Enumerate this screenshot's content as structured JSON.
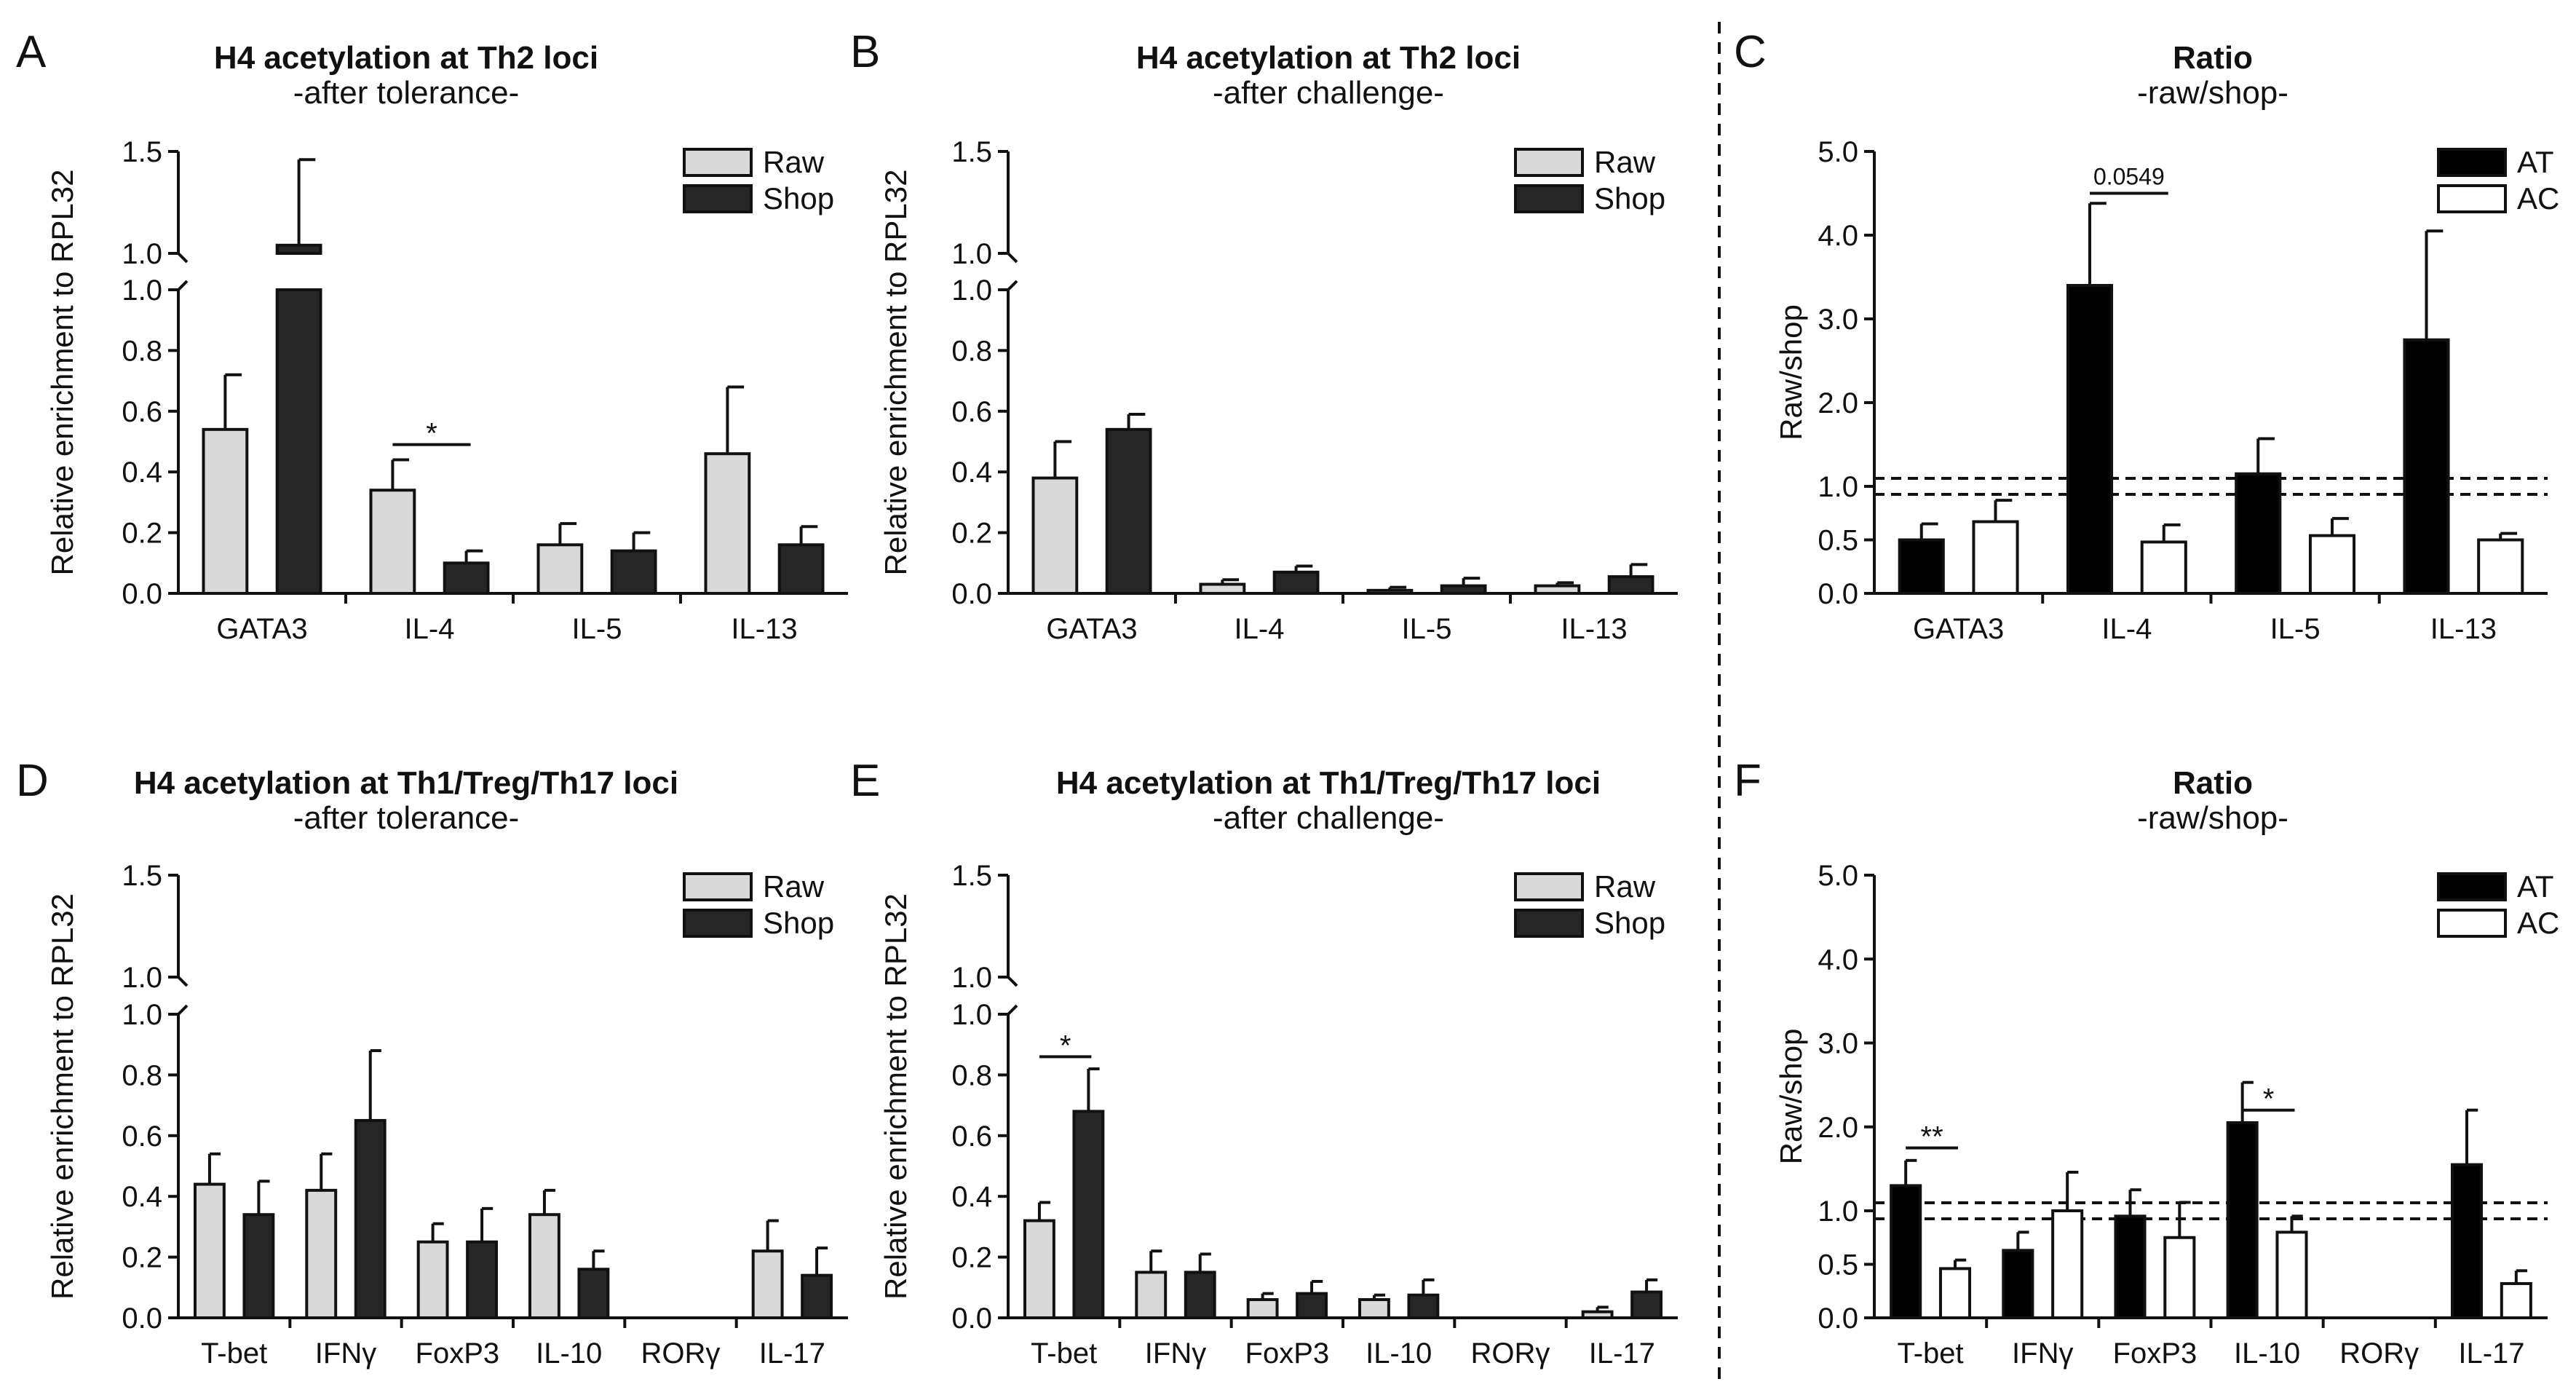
{
  "chart_data": [
    {
      "panel": "A",
      "type": "bar",
      "title": "H4 acetylation at Th2 loci",
      "subtitle": "-after tolerance-",
      "ylabel": "Relative enrichment to RPL32",
      "xlabel": "",
      "axis": "broken",
      "ylim_lower": [
        0,
        1.0
      ],
      "ylim_upper": [
        1.0,
        1.5
      ],
      "yticks_lower": [
        "0.0",
        "0.2",
        "0.4",
        "0.6",
        "0.8",
        "1.0"
      ],
      "yticks_upper": [
        "1.0",
        "1.5"
      ],
      "categories": [
        "GATA3",
        "IL-4",
        "IL-5",
        "IL-13"
      ],
      "series": [
        {
          "name": "Raw",
          "color": "#d9d9d9",
          "values": [
            0.54,
            0.34,
            0.16,
            0.46
          ],
          "errors": [
            0.18,
            0.1,
            0.07,
            0.22
          ]
        },
        {
          "name": "Shop",
          "color": "#262626",
          "values": [
            1.04,
            0.1,
            0.14,
            0.16
          ],
          "errors": [
            0.42,
            0.04,
            0.06,
            0.06
          ]
        }
      ],
      "legend_position": "top-right",
      "annotations": [
        {
          "text": "*",
          "category": "IL-4",
          "y": 0.49
        }
      ]
    },
    {
      "panel": "B",
      "type": "bar",
      "title": "H4 acetylation at Th2 loci",
      "subtitle": "-after challenge-",
      "ylabel": "Relative enrichment to RPL32",
      "xlabel": "",
      "axis": "broken",
      "ylim_lower": [
        0,
        1.0
      ],
      "ylim_upper": [
        1.0,
        1.5
      ],
      "yticks_lower": [
        "0.0",
        "0.2",
        "0.4",
        "0.6",
        "0.8",
        "1.0"
      ],
      "yticks_upper": [
        "1.0",
        "1.5"
      ],
      "categories": [
        "GATA3",
        "IL-4",
        "IL-5",
        "IL-13"
      ],
      "series": [
        {
          "name": "Raw",
          "color": "#d9d9d9",
          "values": [
            0.38,
            0.03,
            0.01,
            0.025
          ],
          "errors": [
            0.12,
            0.015,
            0.01,
            0.01
          ]
        },
        {
          "name": "Shop",
          "color": "#262626",
          "values": [
            0.54,
            0.07,
            0.025,
            0.055
          ],
          "errors": [
            0.05,
            0.02,
            0.025,
            0.04
          ]
        }
      ],
      "legend_position": "top-right",
      "annotations": []
    },
    {
      "panel": "C",
      "type": "bar",
      "title": "Ratio",
      "subtitle": "-raw/shop-",
      "ylabel": "Raw/shop",
      "xlabel": "",
      "axis": "broken",
      "ylim_lower": [
        0,
        1.0
      ],
      "ylim_upper": [
        1.0,
        5.0
      ],
      "yticks_lower": [
        "0.0",
        "0.5",
        "1.0"
      ],
      "yticks_upper": [
        "1.0",
        "2.0",
        "3.0",
        "4.0",
        "5.0"
      ],
      "reference_line": 1.0,
      "categories": [
        "GATA3",
        "IL-4",
        "IL-5",
        "IL-13"
      ],
      "series": [
        {
          "name": "AT",
          "color": "#000000",
          "values": [
            0.5,
            3.4,
            1.15,
            2.75
          ],
          "errors": [
            0.15,
            0.98,
            0.42,
            1.3
          ]
        },
        {
          "name": "AC",
          "color": "#ffffff",
          "values": [
            0.67,
            0.48,
            0.54,
            0.5
          ],
          "errors": [
            0.2,
            0.16,
            0.16,
            0.06
          ]
        }
      ],
      "legend_position": "top-right",
      "annotations": [
        {
          "text": "0.0549",
          "category": "IL-4",
          "y": 4.5
        }
      ]
    },
    {
      "panel": "D",
      "type": "bar",
      "title": "H4 acetylation at Th1/Treg/Th17 loci",
      "subtitle": "-after tolerance-",
      "ylabel": "Relative enrichment to RPL32",
      "xlabel": "",
      "axis": "broken",
      "ylim_lower": [
        0,
        1.0
      ],
      "ylim_upper": [
        1.0,
        1.5
      ],
      "yticks_lower": [
        "0.0",
        "0.2",
        "0.4",
        "0.6",
        "0.8",
        "1.0"
      ],
      "yticks_upper": [
        "1.0",
        "1.5"
      ],
      "categories": [
        "T-bet",
        "IFNγ",
        "FoxP3",
        "IL-10",
        "RORγ",
        "IL-17"
      ],
      "series": [
        {
          "name": "Raw",
          "color": "#d9d9d9",
          "values": [
            0.44,
            0.42,
            0.25,
            0.34,
            0,
            0.22
          ],
          "errors": [
            0.1,
            0.12,
            0.06,
            0.08,
            0,
            0.1
          ]
        },
        {
          "name": "Shop",
          "color": "#262626",
          "values": [
            0.34,
            0.65,
            0.25,
            0.16,
            0,
            0.14
          ],
          "errors": [
            0.11,
            0.23,
            0.11,
            0.06,
            0,
            0.09
          ]
        }
      ],
      "legend_position": "top-right",
      "annotations": []
    },
    {
      "panel": "E",
      "type": "bar",
      "title": "H4 acetylation at Th1/Treg/Th17 loci",
      "subtitle": "-after challenge-",
      "ylabel": "Relative enrichment to RPL32",
      "xlabel": "",
      "axis": "broken",
      "ylim_lower": [
        0,
        1.0
      ],
      "ylim_upper": [
        1.0,
        1.5
      ],
      "yticks_lower": [
        "0.0",
        "0.2",
        "0.4",
        "0.6",
        "0.8",
        "1.0"
      ],
      "yticks_upper": [
        "1.0",
        "1.5"
      ],
      "categories": [
        "T-bet",
        "IFNγ",
        "FoxP3",
        "IL-10",
        "RORγ",
        "IL-17"
      ],
      "series": [
        {
          "name": "Raw",
          "color": "#d9d9d9",
          "values": [
            0.32,
            0.15,
            0.06,
            0.06,
            0,
            0.02
          ],
          "errors": [
            0.06,
            0.07,
            0.02,
            0.015,
            0,
            0.015
          ]
        },
        {
          "name": "Shop",
          "color": "#262626",
          "values": [
            0.68,
            0.15,
            0.08,
            0.075,
            0,
            0.085
          ],
          "errors": [
            0.14,
            0.06,
            0.04,
            0.05,
            0,
            0.04
          ]
        }
      ],
      "legend_position": "top-right",
      "annotations": [
        {
          "text": "*",
          "category": "T-bet",
          "y": 0.86
        }
      ]
    },
    {
      "panel": "F",
      "type": "bar",
      "title": "Ratio",
      "subtitle": "-raw/shop-",
      "ylabel": "Raw/shop",
      "xlabel": "",
      "axis": "broken",
      "ylim_lower": [
        0,
        1.0
      ],
      "ylim_upper": [
        1.0,
        5.0
      ],
      "yticks_lower": [
        "0.0",
        "0.5",
        "1.0"
      ],
      "yticks_upper": [
        "1.0",
        "2.0",
        "3.0",
        "4.0",
        "5.0"
      ],
      "reference_line": 1.0,
      "categories": [
        "T-bet",
        "IFNγ",
        "FoxP3",
        "IL-10",
        "RORγ",
        "IL-17"
      ],
      "series": [
        {
          "name": "AT",
          "color": "#000000",
          "values": [
            1.3,
            0.63,
            0.95,
            2.05,
            0,
            1.55
          ],
          "errors": [
            0.3,
            0.17,
            0.3,
            0.48,
            0,
            0.65
          ]
        },
        {
          "name": "AC",
          "color": "#ffffff",
          "values": [
            0.46,
            1.0,
            0.75,
            0.8,
            0,
            0.32
          ],
          "errors": [
            0.08,
            0.46,
            0.35,
            0.15,
            0,
            0.12
          ]
        }
      ],
      "legend_position": "top-right",
      "annotations": [
        {
          "text": "**",
          "category": "T-bet",
          "y": 1.75
        },
        {
          "text": "*",
          "category": "IL-10",
          "y": 2.2
        }
      ]
    }
  ],
  "separator": "dashed vertical line between panels B/E and C/F"
}
